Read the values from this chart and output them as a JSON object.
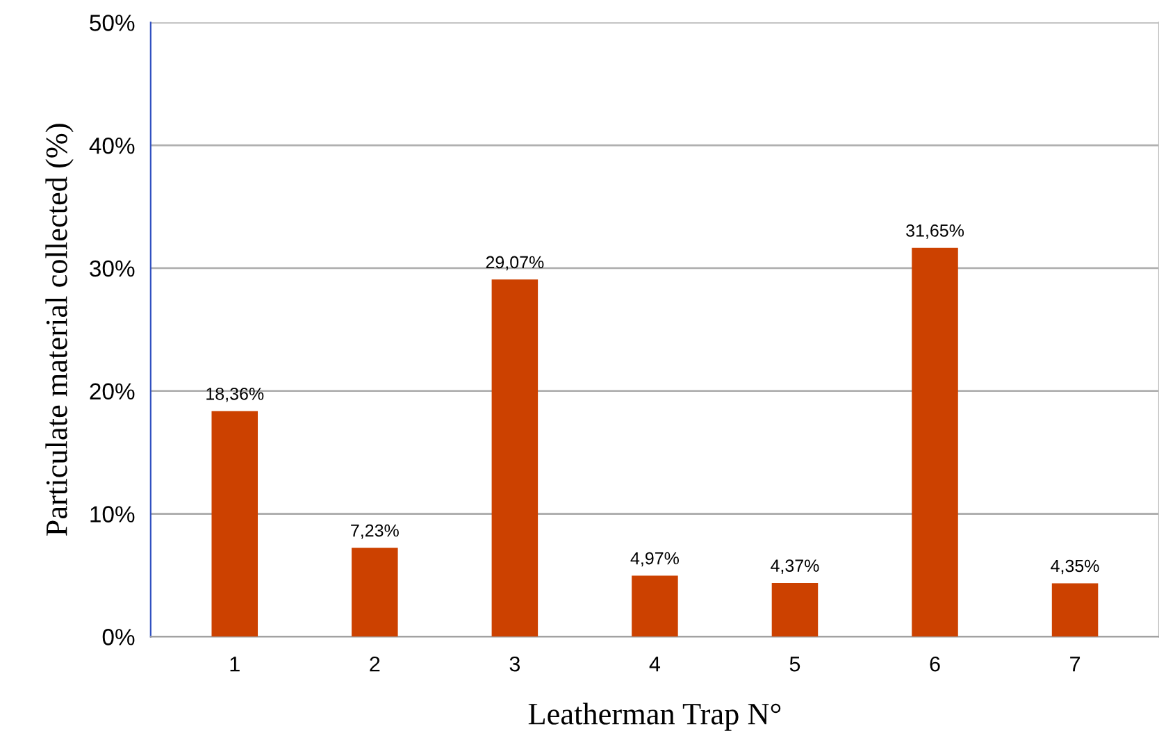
{
  "chart_data": {
    "type": "bar",
    "xlabel": "Leatherman Trap N°",
    "ylabel": "Particulate material collected (%)",
    "categories": [
      "1",
      "2",
      "3",
      "4",
      "5",
      "6",
      "7"
    ],
    "values": [
      18.36,
      7.23,
      29.07,
      4.97,
      4.37,
      31.65,
      4.35
    ],
    "value_labels": [
      "18,36%",
      "7,23%",
      "29,07%",
      "4,97%",
      "4,37%",
      "31,65%",
      "4,35%"
    ],
    "color": "#cc4100",
    "ylim": [
      0,
      50
    ],
    "yticks": [
      {
        "value": 0,
        "label": "0%"
      },
      {
        "value": 10,
        "label": "10%"
      },
      {
        "value": 20,
        "label": "20%"
      },
      {
        "value": 30,
        "label": "30%"
      },
      {
        "value": 40,
        "label": "40%"
      },
      {
        "value": 50,
        "label": "50%"
      }
    ],
    "grid": "y"
  }
}
